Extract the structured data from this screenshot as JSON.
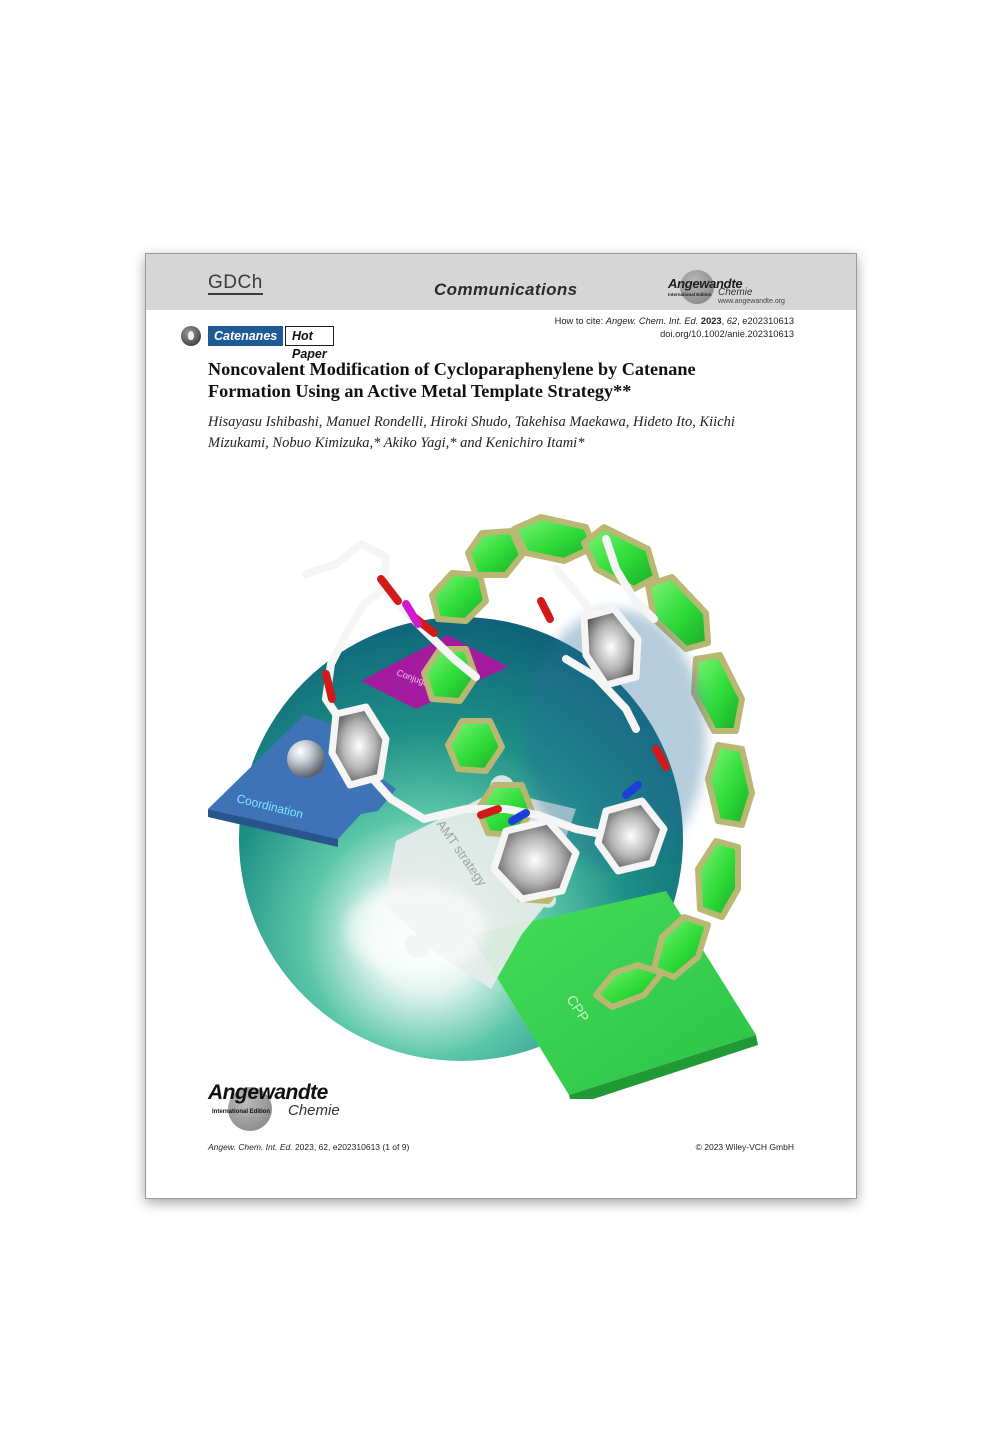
{
  "header": {
    "society": "GDCh",
    "section": "Communications",
    "journal_logo": {
      "name": "Angewandte",
      "edition": "International Edition",
      "subtitle": "Chemie",
      "url": "www.angewandte.org"
    }
  },
  "citation": {
    "prefix": "How to cite: ",
    "journal": "Angew. Chem. Int. Ed.",
    "year": "2023",
    "volume": "62",
    "article_id": "e202310613",
    "doi": "doi.org/10.1002/anie.202310613"
  },
  "tags": {
    "category": "Catenanes",
    "badge": "Hot Paper"
  },
  "article": {
    "title": "Noncovalent Modification of Cycloparaphenylene by Catenane Formation Using an Active Metal Template Strategy**",
    "authors": "Hisayasu Ishibashi, Manuel Rondelli, Hiroki Shudo, Takehisa Maekawa, Hideto Ito, Kiichi Mizukami, Nobuo Kimizuka,* Akiko Yagi,* and Kenichiro Itami*"
  },
  "graphic_labels": {
    "coordination": "Coordination",
    "conjugation": "Conjugation",
    "amt": "AMT strategy",
    "cpp": "CPP"
  },
  "footer": {
    "logo_name": "Angewandte",
    "logo_edition": "International Edition",
    "logo_subtitle": "Chemie",
    "journal": "Angew. Chem. Int. Ed.",
    "ref": " 2023, 62, e202310613 (1 of 9)",
    "copyright": "© 2023 Wiley-VCH GmbH"
  },
  "colors": {
    "header_bg": "#d6d6d6",
    "tag_blue": "#1f5a97",
    "cpp_green": "#38e040",
    "cpp_frame": "#b9b873",
    "sphere_teal": "#1f8a8a",
    "puzzle_purple": "#a9109f",
    "puzzle_blue": "#3d6fb3"
  }
}
